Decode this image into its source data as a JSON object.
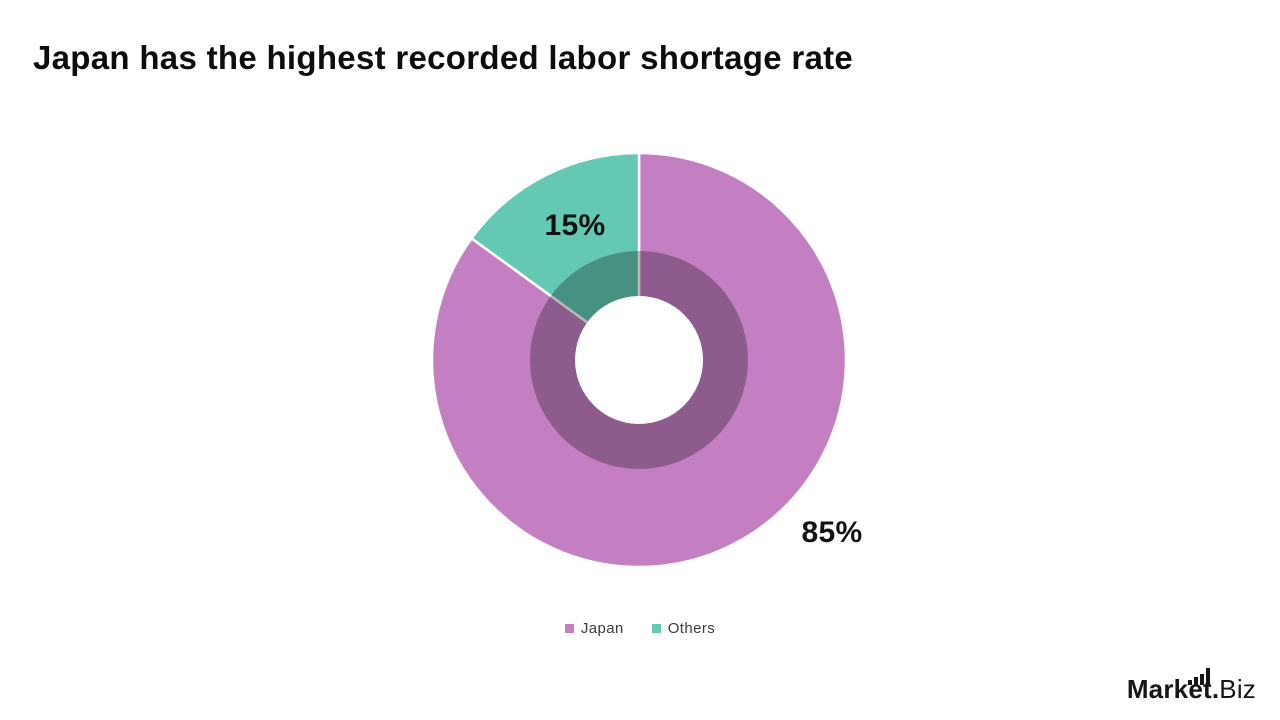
{
  "title": "Japan has the highest recorded labor shortage rate",
  "chart_data": {
    "type": "pie",
    "subtype": "donut",
    "title": "Japan has the highest recorded labor shortage rate",
    "categories": [
      "Japan",
      "Others"
    ],
    "values": [
      85,
      15
    ],
    "unit": "%",
    "point_labels": [
      "85%",
      "15%"
    ],
    "colors": [
      "#c47fc2",
      "#63c9b3"
    ],
    "inner_shade_opacity": 0.28,
    "start_angle_deg": -90,
    "direction": "clockwise",
    "legend_position": "bottom",
    "legend": [
      {
        "label": "Japan",
        "color": "#c47fc2"
      },
      {
        "label": "Others",
        "color": "#63c9b3"
      }
    ]
  },
  "branding": {
    "logo_bold": "Market.",
    "logo_light": "Biz"
  }
}
